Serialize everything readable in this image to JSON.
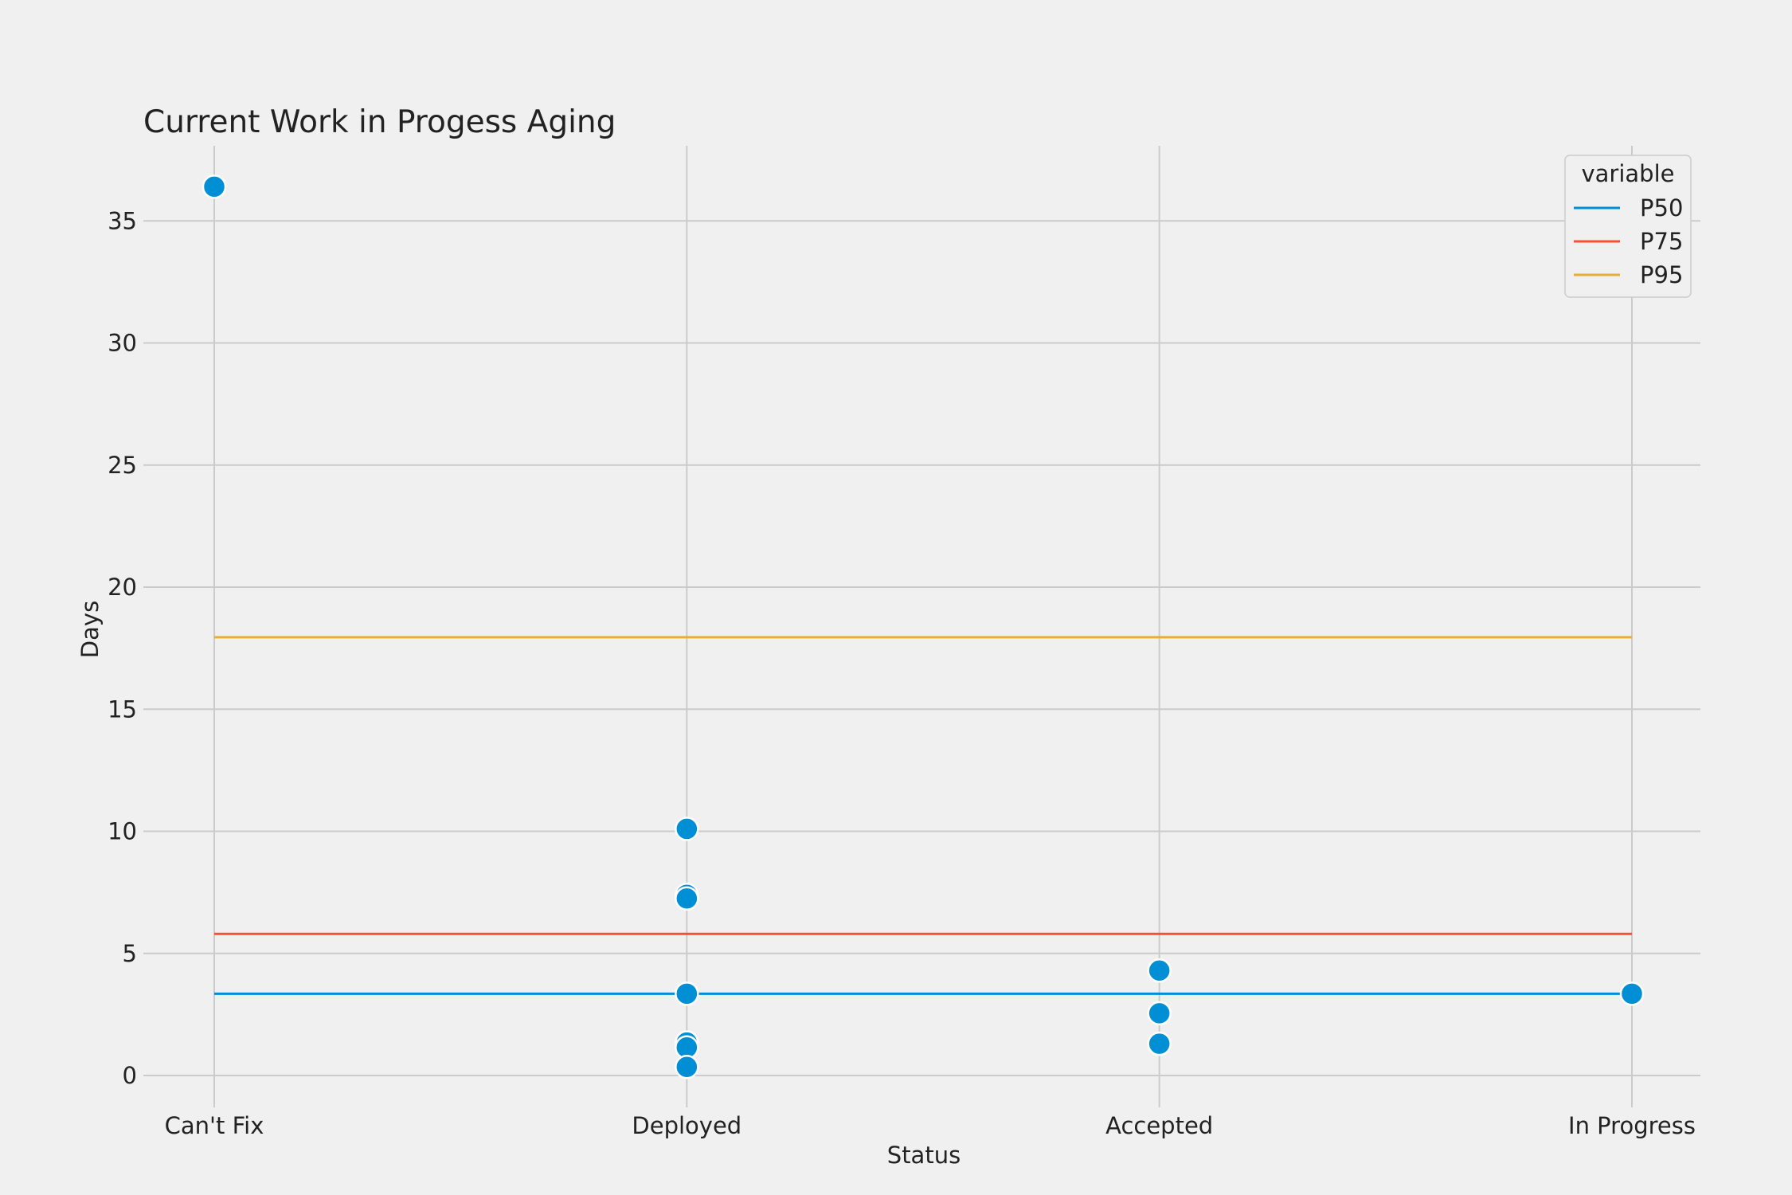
{
  "chart_data": {
    "type": "scatter",
    "title": "Current Work in Progess Aging",
    "xlabel": "Status",
    "ylabel": "Days",
    "categories": [
      "Can't Fix",
      "Deployed",
      "Accepted",
      "In Progress"
    ],
    "yticks": [
      0,
      5,
      10,
      15,
      20,
      25,
      30,
      35
    ],
    "ylim": [
      -1.5,
      38.2
    ],
    "grid": true,
    "points": [
      {
        "x": "Can't Fix",
        "y": 36.4
      },
      {
        "x": "Deployed",
        "y": 10.1
      },
      {
        "x": "Deployed",
        "y": 7.4
      },
      {
        "x": "Deployed",
        "y": 7.25
      },
      {
        "x": "Deployed",
        "y": 3.35
      },
      {
        "x": "Deployed",
        "y": 1.35
      },
      {
        "x": "Deployed",
        "y": 1.15
      },
      {
        "x": "Deployed",
        "y": 0.35
      },
      {
        "x": "Accepted",
        "y": 4.3
      },
      {
        "x": "Accepted",
        "y": 2.55
      },
      {
        "x": "Accepted",
        "y": 1.3
      },
      {
        "x": "In Progress",
        "y": 3.35
      }
    ],
    "point_color": "#008fd5",
    "legend": {
      "title": "variable",
      "position": "top-right",
      "entries": [
        {
          "name": "P50",
          "value": 3.35,
          "color": "#008fd5"
        },
        {
          "name": "P75",
          "value": 5.8,
          "color": "#fc4f30"
        },
        {
          "name": "P95",
          "value": 17.95,
          "color": "#e5ae38"
        }
      ]
    }
  }
}
